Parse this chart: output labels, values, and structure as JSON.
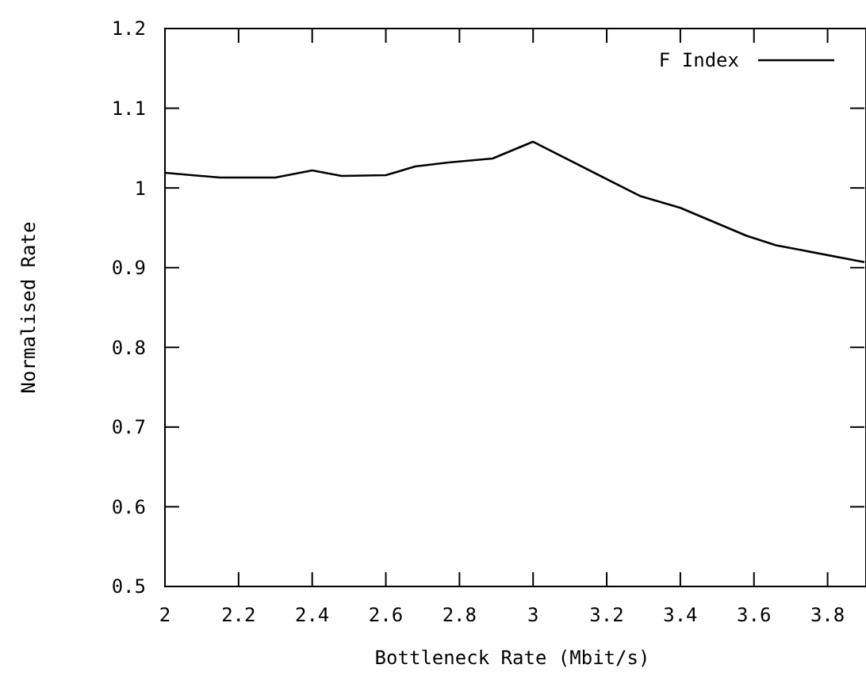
{
  "chart_data": {
    "type": "line",
    "xlabel": "Bottleneck Rate (Mbit/s)",
    "ylabel": "Normalised Rate",
    "x": [
      2,
      2.15,
      2.3,
      2.4,
      2.48,
      2.6,
      2.68,
      2.77,
      2.89,
      3,
      3.29,
      3.4,
      3.58,
      3.66,
      3.74,
      3.9
    ],
    "series": [
      {
        "name": "F Index",
        "color": "#000000",
        "values": [
          1.019,
          1.013,
          1.013,
          1.022,
          1.015,
          1.016,
          1.027,
          1.032,
          1.037,
          1.058,
          0.99,
          0.975,
          0.94,
          0.928,
          0.921,
          0.907
        ]
      }
    ],
    "xlim": [
      2,
      3.9
    ],
    "xticks": [
      2,
      2.2,
      2.4,
      2.6,
      2.8,
      3,
      3.2,
      3.4,
      3.6,
      3.8
    ],
    "ylim": [
      0.5,
      1.2
    ],
    "yticks": [
      {
        "value": 0.5,
        "label": "0.5"
      },
      {
        "value": 0.6,
        "label": "0.6"
      },
      {
        "value": 0.7,
        "label": "0.7"
      },
      {
        "value": 0.8,
        "label": "0.8"
      },
      {
        "value": 0.9,
        "label": "0.9"
      },
      1,
      {
        "value": 1.1,
        "label": "1.1"
      },
      {
        "value": 1.2,
        "label": "1.2"
      }
    ],
    "legend": "top right",
    "grid": false,
    "marker": "none",
    "line_style": "solid"
  }
}
